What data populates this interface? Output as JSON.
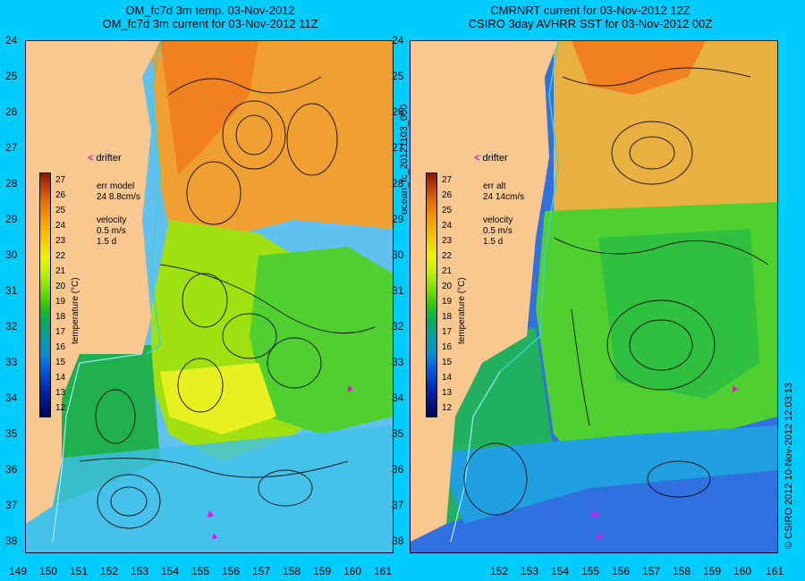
{
  "titles": {
    "left": [
      "OM_fc7d 3m temp. 03-Nov-2012",
      "OM_fc7d 3m current for 03-Nov-2012 11Z"
    ],
    "right": [
      "CMRNRT current for 03-Nov-2012 12Z",
      "CSIRO 3day AVHRR SST for 03-Nov-2012 00Z"
    ]
  },
  "axes": {
    "lat_ticks": [
      "24",
      "25",
      "26",
      "27",
      "28",
      "29",
      "30",
      "31",
      "32",
      "33",
      "34",
      "35",
      "36",
      "37",
      "38"
    ],
    "lon_ticks_left": [
      "149",
      "150",
      "151",
      "152",
      "153",
      "154",
      "155",
      "156",
      "157",
      "158",
      "159",
      "160",
      "161"
    ],
    "lon_ticks_right": [
      "152",
      "153",
      "154",
      "155",
      "156",
      "157",
      "158",
      "159",
      "160",
      "161"
    ]
  },
  "colorbar": {
    "title": "temperature (°C)",
    "ticks": [
      "27",
      "26",
      "25",
      "24",
      "23",
      "22",
      "21",
      "20",
      "19",
      "18",
      "17",
      "16",
      "15",
      "14",
      "13",
      "12"
    ],
    "colors": [
      "#8b1a00",
      "#c84000",
      "#f07800",
      "#f8a000",
      "#f8c800",
      "#f0f000",
      "#c8f000",
      "#80e000",
      "#30c800",
      "#00b050",
      "#00a0a0",
      "#0090d0",
      "#0060e0",
      "#0030c0",
      "#001890",
      "#000060"
    ]
  },
  "left_panel": {
    "drifter_label": "drifter",
    "err_label": "err model",
    "err_value": "24 8.8cm/s",
    "velocity_label": "velocity",
    "velocity_value": "0.5 m/s",
    "velocity_time": "1.5 d"
  },
  "right_panel": {
    "drifter_label": "drifter",
    "err_label": "err alt",
    "err_value": "24 14cm/s",
    "velocity_label": "velocity",
    "velocity_value": "0.5 m/s",
    "velocity_time": "1.5 d"
  },
  "side_labels": {
    "middle": "ocean_fc_20121103_000",
    "right": "© CSIRO 2012   10-Nov-2012 12:03:13"
  },
  "colors": {
    "background": "#00ccff",
    "land": "#f8c890",
    "drifter": "#ff00ff"
  }
}
